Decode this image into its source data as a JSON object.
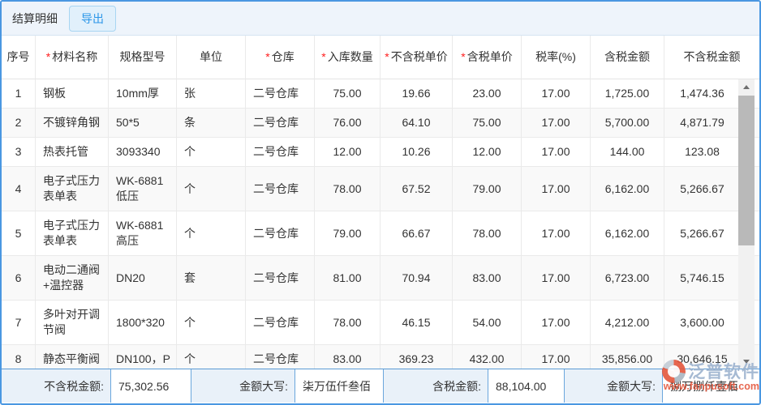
{
  "topbar": {
    "title": "结算明细",
    "export_label": "导出"
  },
  "table": {
    "columns": [
      {
        "label": "序号",
        "required": false
      },
      {
        "label": "材料名称",
        "required": true
      },
      {
        "label": "规格型号",
        "required": false
      },
      {
        "label": "单位",
        "required": false
      },
      {
        "label": "仓库",
        "required": true
      },
      {
        "label": "入库数量",
        "required": true
      },
      {
        "label": "不含税单价",
        "required": true
      },
      {
        "label": "含税单价",
        "required": true
      },
      {
        "label": "税率(%)",
        "required": false
      },
      {
        "label": "含税金额",
        "required": false
      },
      {
        "label": "不含税金额",
        "required": false
      }
    ],
    "rows": [
      [
        "1",
        "钢板",
        "10mm厚",
        "张",
        "二号仓库",
        "75.00",
        "19.66",
        "23.00",
        "17.00",
        "1,725.00",
        "1,474.36"
      ],
      [
        "2",
        "不镀锌角钢",
        "50*5",
        "条",
        "二号仓库",
        "76.00",
        "64.10",
        "75.00",
        "17.00",
        "5,700.00",
        "4,871.79"
      ],
      [
        "3",
        "热表托管",
        "3093340",
        "个",
        "二号仓库",
        "12.00",
        "10.26",
        "12.00",
        "17.00",
        "144.00",
        "123.08"
      ],
      [
        "4",
        "电子式压力表单表",
        "WK-6881低压",
        "个",
        "二号仓库",
        "78.00",
        "67.52",
        "79.00",
        "17.00",
        "6,162.00",
        "5,266.67"
      ],
      [
        "5",
        "电子式压力表单表",
        "WK-6881高压",
        "个",
        "二号仓库",
        "79.00",
        "66.67",
        "78.00",
        "17.00",
        "6,162.00",
        "5,266.67"
      ],
      [
        "6",
        "电动二通阀+温控器",
        "DN20",
        "套",
        "二号仓库",
        "81.00",
        "70.94",
        "83.00",
        "17.00",
        "6,723.00",
        "5,746.15"
      ],
      [
        "7",
        "多叶对开调节阀",
        "1800*320",
        "个",
        "二号仓库",
        "78.00",
        "46.15",
        "54.00",
        "17.00",
        "4,212.00",
        "3,600.00"
      ],
      [
        "8",
        "静态平衡阀",
        "DN100，P",
        "个",
        "二号仓库",
        "83.00",
        "369.23",
        "432.00",
        "17.00",
        "35,856.00",
        "30,646.15"
      ]
    ]
  },
  "footer": {
    "fields": [
      {
        "label": "不含税金额:",
        "value": "75,302.56"
      },
      {
        "label": "金额大写:",
        "value": "柒万伍仟叁佰"
      },
      {
        "label": "含税金额:",
        "value": "88,104.00"
      },
      {
        "label": "金额大写:",
        "value": "捌万捌仟壹佰"
      }
    ]
  },
  "watermark": {
    "name": "泛普软件",
    "url": "www.fanpusoft.com"
  },
  "colors": {
    "panel_border": "#4a97e1",
    "topbar_bg": "#eef4fb",
    "export_text": "#2b96e8",
    "export_bg": "#e1f0fb",
    "required_asterisk": "#ff2020",
    "footer_bg": "#e9f1f9",
    "footer_border": "#5b9bd5",
    "watermark_url_color": "#e4573d"
  }
}
